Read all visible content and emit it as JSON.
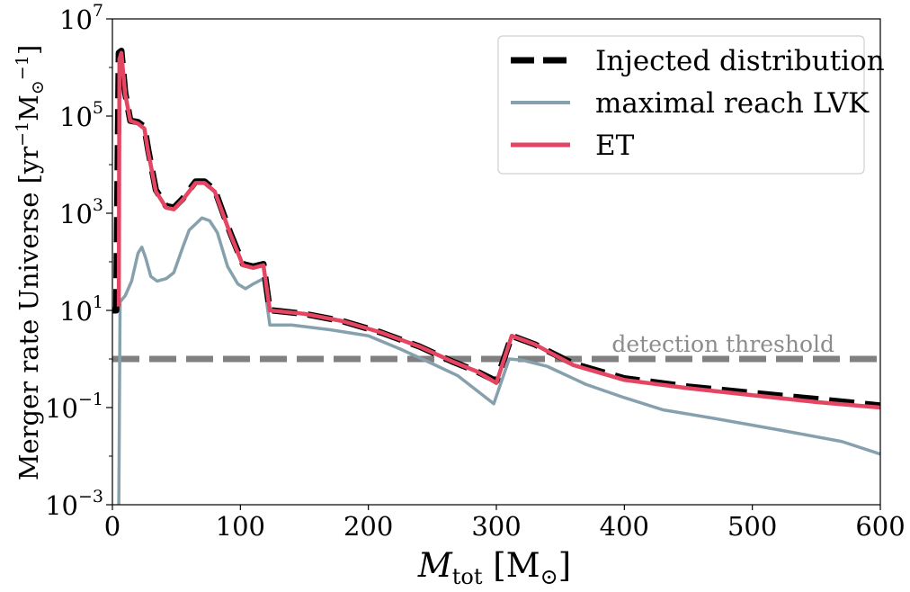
{
  "chart_data": {
    "type": "line",
    "xlabel": "M_tot [M_⊙]",
    "xlabel_parts": {
      "main": "M",
      "sub": "tot",
      "unit_open": " [M",
      "unit_sub": "⊙",
      "unit_close": "]"
    },
    "ylabel": "Merger rate Universe [yr⁻¹M⊙⁻¹]",
    "ylabel_parts": {
      "main": "Merger rate Universe [yr",
      "sup1": "−1",
      "mid": "M",
      "sub": "⊙",
      "sup2": "−1",
      "close": "]"
    },
    "xlim": [
      0,
      600
    ],
    "ylim": [
      0.001,
      10000000
    ],
    "yscale": "log",
    "grid": false,
    "legend_position": "top-right",
    "x_ticks": [
      0,
      100,
      200,
      300,
      400,
      500,
      600
    ],
    "x_tick_labels": [
      "0",
      "100",
      "200",
      "300",
      "400",
      "500",
      "600"
    ],
    "y_ticks": [
      0.001,
      0.1,
      10,
      1000,
      100000,
      10000000
    ],
    "y_tick_labels": [
      {
        "base": "10",
        "exp": "−3"
      },
      {
        "base": "10",
        "exp": "−1"
      },
      {
        "base": "10",
        "exp": "1"
      },
      {
        "base": "10",
        "exp": "3"
      },
      {
        "base": "10",
        "exp": "5"
      },
      {
        "base": "10",
        "exp": "7"
      }
    ],
    "threshold": {
      "label": "detection threshold",
      "y": 1,
      "color": "#808080"
    },
    "series": [
      {
        "name": "Injected distribution",
        "color": "#000000",
        "style": "dashed",
        "points": [
          [
            0,
            10
          ],
          [
            3,
            10
          ],
          [
            5,
            2000000
          ],
          [
            7,
            2200000
          ],
          [
            10,
            300000
          ],
          [
            14,
            80000
          ],
          [
            20,
            75000
          ],
          [
            25,
            60000
          ],
          [
            28,
            20000
          ],
          [
            34,
            3000
          ],
          [
            42,
            1400
          ],
          [
            48,
            1300
          ],
          [
            55,
            2000
          ],
          [
            65,
            4500
          ],
          [
            72,
            4500
          ],
          [
            80,
            3000
          ],
          [
            92,
            400
          ],
          [
            102,
            90
          ],
          [
            110,
            80
          ],
          [
            118,
            90
          ],
          [
            123,
            10
          ],
          [
            125,
            10
          ],
          [
            150,
            8.5
          ],
          [
            180,
            6
          ],
          [
            210,
            3.5
          ],
          [
            240,
            1.8
          ],
          [
            265,
            0.9
          ],
          [
            285,
            0.55
          ],
          [
            300,
            0.35
          ],
          [
            312,
            3
          ],
          [
            330,
            2
          ],
          [
            360,
            0.8
          ],
          [
            400,
            0.4
          ],
          [
            450,
            0.27
          ],
          [
            500,
            0.2
          ],
          [
            550,
            0.15
          ],
          [
            600,
            0.11
          ]
        ]
      },
      {
        "name": "maximal reach LVK",
        "color": "#86a1ad",
        "style": "solid",
        "points": [
          [
            5,
            0.001
          ],
          [
            6,
            15
          ],
          [
            10,
            20
          ],
          [
            15,
            40
          ],
          [
            20,
            150
          ],
          [
            23,
            200
          ],
          [
            26,
            120
          ],
          [
            30,
            50
          ],
          [
            35,
            40
          ],
          [
            42,
            45
          ],
          [
            48,
            60
          ],
          [
            55,
            200
          ],
          [
            60,
            450
          ],
          [
            65,
            600
          ],
          [
            70,
            800
          ],
          [
            76,
            700
          ],
          [
            82,
            400
          ],
          [
            90,
            80
          ],
          [
            98,
            35
          ],
          [
            104,
            28
          ],
          [
            110,
            35
          ],
          [
            118,
            45
          ],
          [
            123,
            5
          ],
          [
            140,
            5
          ],
          [
            170,
            4
          ],
          [
            200,
            3
          ],
          [
            225,
            1.6
          ],
          [
            250,
            0.8
          ],
          [
            270,
            0.45
          ],
          [
            298,
            0.12
          ],
          [
            310,
            1.0
          ],
          [
            320,
            0.95
          ],
          [
            340,
            0.7
          ],
          [
            370,
            0.3
          ],
          [
            400,
            0.16
          ],
          [
            430,
            0.09
          ],
          [
            470,
            0.06
          ],
          [
            520,
            0.035
          ],
          [
            570,
            0.02
          ],
          [
            600,
            0.011
          ]
        ]
      },
      {
        "name": "ET",
        "color": "#e44562",
        "style": "solid",
        "points": [
          [
            5,
            12
          ],
          [
            5.5,
            1500000
          ],
          [
            7,
            2000000
          ],
          [
            10,
            280000
          ],
          [
            14,
            80000
          ],
          [
            20,
            70000
          ],
          [
            25,
            55000
          ],
          [
            28,
            18000
          ],
          [
            34,
            2800
          ],
          [
            42,
            1300
          ],
          [
            48,
            1200
          ],
          [
            55,
            1900
          ],
          [
            65,
            4200
          ],
          [
            72,
            4200
          ],
          [
            80,
            2800
          ],
          [
            92,
            380
          ],
          [
            102,
            85
          ],
          [
            110,
            75
          ],
          [
            118,
            85
          ],
          [
            123,
            10
          ],
          [
            150,
            8.5
          ],
          [
            180,
            6
          ],
          [
            210,
            3.5
          ],
          [
            240,
            1.8
          ],
          [
            265,
            0.9
          ],
          [
            285,
            0.55
          ],
          [
            300,
            0.32
          ],
          [
            312,
            3
          ],
          [
            330,
            2
          ],
          [
            360,
            0.75
          ],
          [
            400,
            0.37
          ],
          [
            450,
            0.25
          ],
          [
            500,
            0.18
          ],
          [
            550,
            0.13
          ],
          [
            600,
            0.1
          ]
        ]
      }
    ]
  }
}
